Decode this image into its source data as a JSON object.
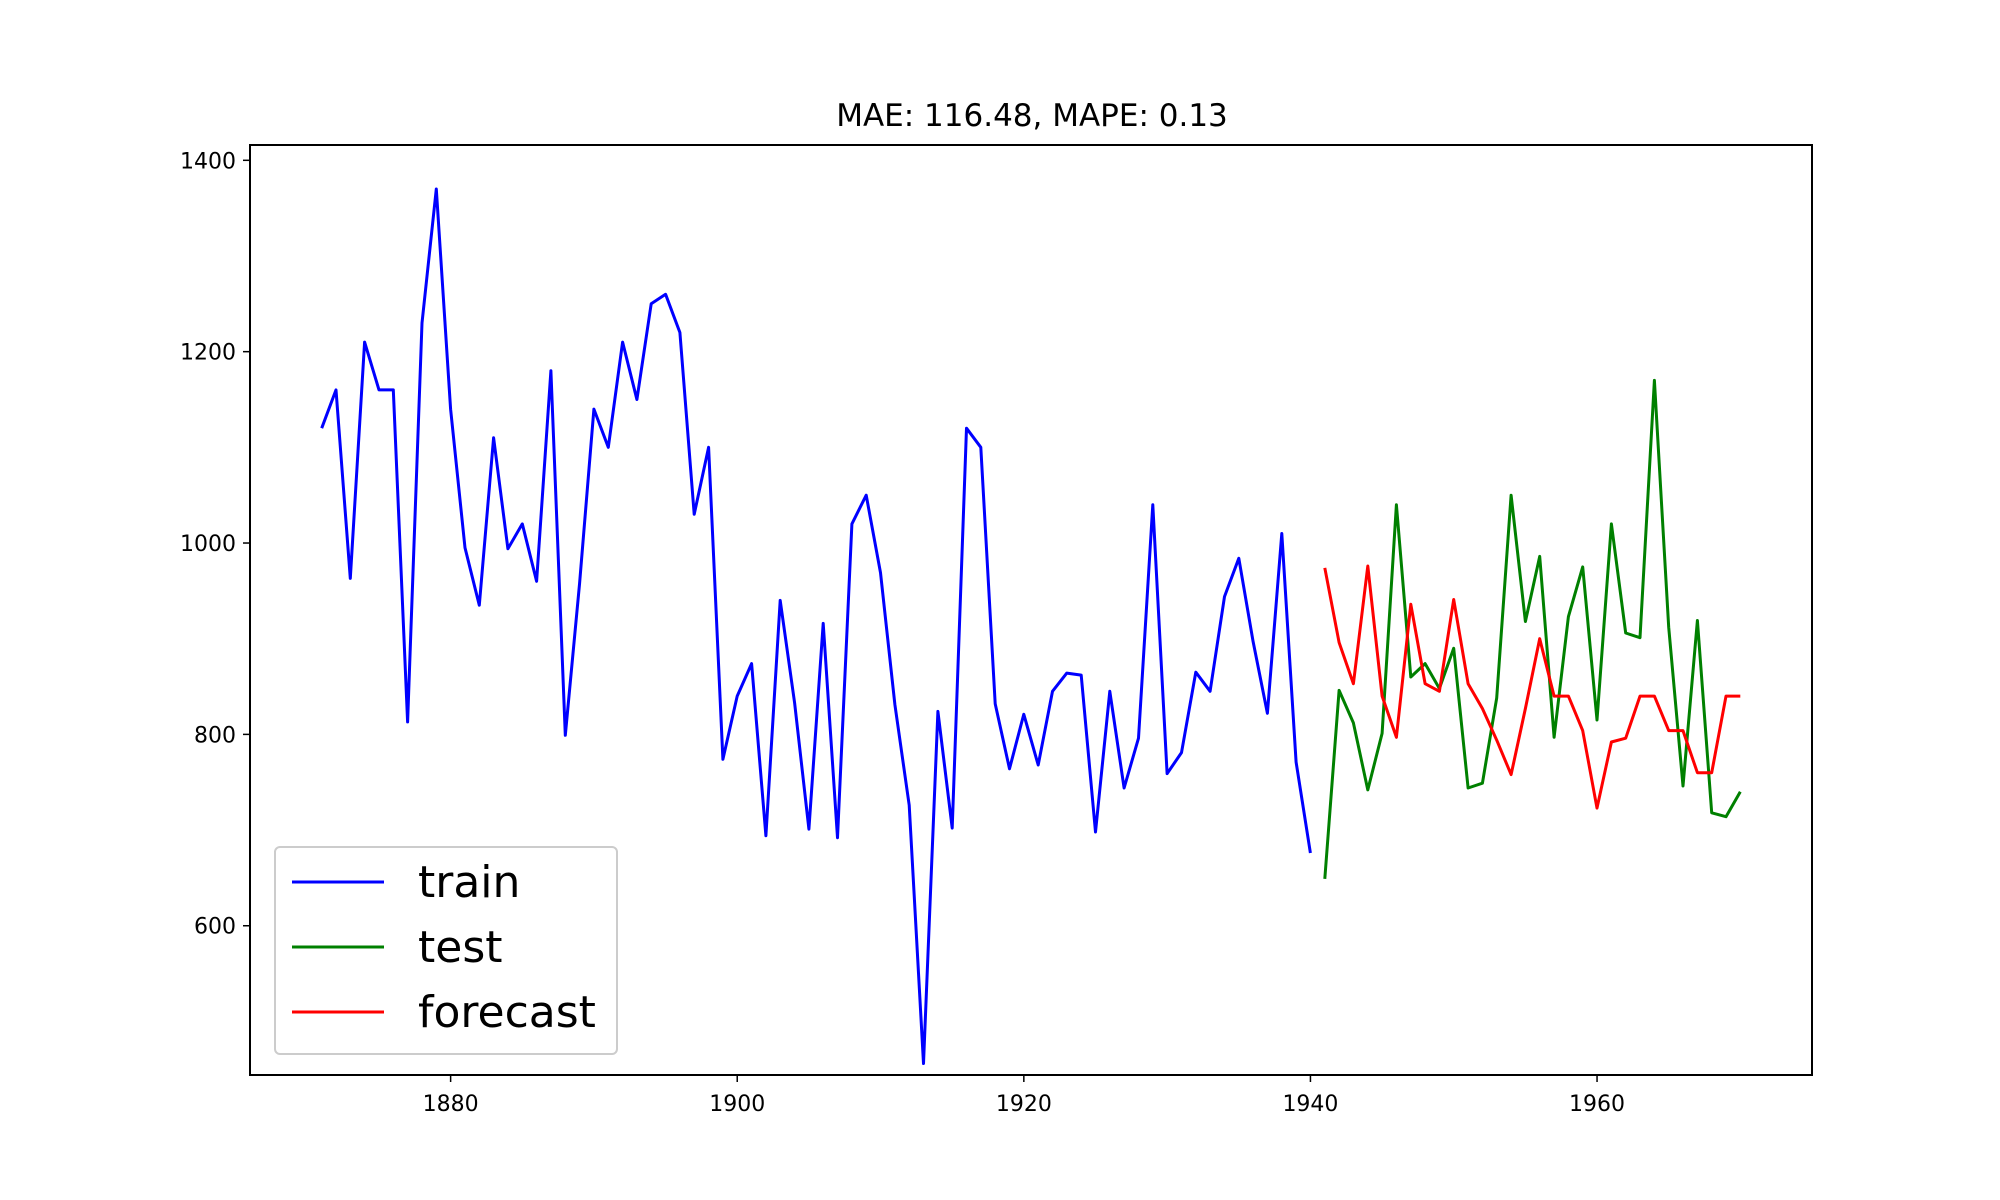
{
  "chart_data": {
    "type": "line",
    "title": "MAE: 116.48, MAPE: 0.13",
    "xlabel": "",
    "ylabel": "",
    "xlim": [
      1866,
      1975
    ],
    "ylim": [
      444,
      1416
    ],
    "xticks": [
      1880,
      1900,
      1920,
      1940,
      1960
    ],
    "yticks": [
      600,
      800,
      1000,
      1200,
      1400
    ],
    "grid": false,
    "legend_position": "lower-left",
    "series": [
      {
        "name": "train",
        "color": "#0000ff",
        "x": [
          1871,
          1872,
          1873,
          1874,
          1875,
          1876,
          1877,
          1878,
          1879,
          1880,
          1881,
          1882,
          1883,
          1884,
          1885,
          1886,
          1887,
          1888,
          1889,
          1890,
          1891,
          1892,
          1893,
          1894,
          1895,
          1896,
          1897,
          1898,
          1899,
          1900,
          1901,
          1902,
          1903,
          1904,
          1905,
          1906,
          1907,
          1908,
          1909,
          1910,
          1911,
          1912,
          1913,
          1914,
          1915,
          1916,
          1917,
          1918,
          1919,
          1920,
          1921,
          1922,
          1923,
          1924,
          1925,
          1926,
          1927,
          1928,
          1929,
          1930,
          1931,
          1932,
          1933,
          1934,
          1935,
          1936,
          1937,
          1938,
          1939,
          1940
        ],
        "values": [
          1120,
          1160,
          963,
          1210,
          1160,
          1160,
          813,
          1230,
          1370,
          1140,
          995,
          935,
          1110,
          994,
          1020,
          960,
          1180,
          799,
          958,
          1140,
          1100,
          1210,
          1150,
          1250,
          1260,
          1220,
          1030,
          1100,
          774,
          840,
          874,
          694,
          940,
          833,
          701,
          916,
          692,
          1020,
          1050,
          969,
          831,
          726,
          456,
          824,
          702,
          1120,
          1100,
          832,
          764,
          821,
          768,
          845,
          864,
          862,
          698,
          845,
          744,
          796,
          1040,
          759,
          781,
          865,
          845,
          944,
          984,
          897,
          822,
          1010,
          771,
          676
        ]
      },
      {
        "name": "test",
        "color": "#008000",
        "x": [
          1941,
          1942,
          1943,
          1944,
          1945,
          1946,
          1947,
          1948,
          1949,
          1950,
          1951,
          1952,
          1953,
          1954,
          1955,
          1956,
          1957,
          1958,
          1959,
          1960,
          1961,
          1962,
          1963,
          1964,
          1965,
          1966,
          1967,
          1968,
          1969,
          1970
        ],
        "values": [
          649,
          846,
          812,
          742,
          801,
          1040,
          860,
          874,
          848,
          890,
          744,
          749,
          838,
          1050,
          918,
          986,
          797,
          923,
          975,
          815,
          1020,
          906,
          901,
          1170,
          912,
          746,
          919,
          718,
          714,
          740
        ]
      },
      {
        "name": "forecast",
        "color": "#ff0000",
        "x": [
          1941,
          1942,
          1943,
          1944,
          1945,
          1946,
          1947,
          1948,
          1949,
          1950,
          1951,
          1952,
          1953,
          1954,
          1955,
          1956,
          1957,
          1958,
          1959,
          1960,
          1961,
          1962,
          1963,
          1964,
          1965,
          1966,
          1967,
          1968,
          1969,
          1970
        ],
        "values": [
          974,
          896,
          853,
          976,
          840,
          797,
          936,
          853,
          845,
          941,
          853,
          827,
          794,
          758,
          827,
          900,
          840,
          840,
          804,
          723,
          792,
          796,
          840,
          840,
          804,
          804,
          760,
          760,
          840,
          840
        ]
      }
    ]
  }
}
